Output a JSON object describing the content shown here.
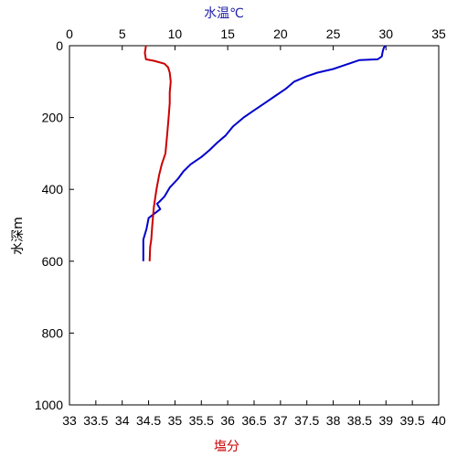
{
  "chart_data": {
    "type": "line",
    "top_axis": {
      "label": "水温℃",
      "label_color": "#1f1fa8",
      "range": [
        0,
        35
      ],
      "ticks": [
        "0",
        "5",
        "10",
        "15",
        "20",
        "25",
        "30",
        "35"
      ]
    },
    "bottom_axis": {
      "label": "塩分",
      "label_color": "#cc0000",
      "range": [
        33,
        40
      ],
      "ticks": [
        "33",
        "33.5",
        "34",
        "34.5",
        "35",
        "35.5",
        "36",
        "36.5",
        "37",
        "37.5",
        "38",
        "38.5",
        "39",
        "39.5",
        "40"
      ]
    },
    "y_axis": {
      "label": "水深m",
      "range": [
        0,
        1000
      ],
      "inverted": true,
      "ticks": [
        "0",
        "200",
        "400",
        "600",
        "800",
        "1000"
      ]
    },
    "series": [
      {
        "color": "#0000cc",
        "axis": "top",
        "points": [
          [
            30.0,
            0
          ],
          [
            29.8,
            5
          ],
          [
            29.7,
            15
          ],
          [
            29.6,
            30
          ],
          [
            29.2,
            38
          ],
          [
            27.5,
            40
          ],
          [
            26.0,
            55
          ],
          [
            25.0,
            65
          ],
          [
            23.5,
            75
          ],
          [
            22.5,
            85
          ],
          [
            21.3,
            100
          ],
          [
            20.5,
            120
          ],
          [
            19.5,
            140
          ],
          [
            18.5,
            160
          ],
          [
            17.5,
            180
          ],
          [
            16.5,
            200
          ],
          [
            15.5,
            225
          ],
          [
            14.8,
            250
          ],
          [
            14.0,
            270
          ],
          [
            13.3,
            290
          ],
          [
            12.5,
            310
          ],
          [
            11.5,
            330
          ],
          [
            10.8,
            350
          ],
          [
            10.3,
            370
          ],
          [
            9.5,
            395
          ],
          [
            9.0,
            420
          ],
          [
            8.5,
            435
          ],
          [
            8.3,
            440
          ],
          [
            8.6,
            455
          ],
          [
            7.5,
            480
          ],
          [
            7.3,
            510
          ],
          [
            7.0,
            540
          ],
          [
            7.0,
            560
          ],
          [
            7.0,
            600
          ]
        ]
      },
      {
        "color": "#cc0000",
        "axis": "bottom",
        "points": [
          [
            34.45,
            0
          ],
          [
            34.43,
            20
          ],
          [
            34.45,
            38
          ],
          [
            34.6,
            42
          ],
          [
            34.8,
            50
          ],
          [
            34.87,
            60
          ],
          [
            34.9,
            75
          ],
          [
            34.92,
            100
          ],
          [
            34.9,
            130
          ],
          [
            34.9,
            160
          ],
          [
            34.88,
            200
          ],
          [
            34.85,
            250
          ],
          [
            34.82,
            300
          ],
          [
            34.75,
            330
          ],
          [
            34.7,
            360
          ],
          [
            34.65,
            400
          ],
          [
            34.6,
            450
          ],
          [
            34.57,
            500
          ],
          [
            34.55,
            540
          ],
          [
            34.53,
            560
          ],
          [
            34.52,
            600
          ]
        ]
      }
    ]
  }
}
